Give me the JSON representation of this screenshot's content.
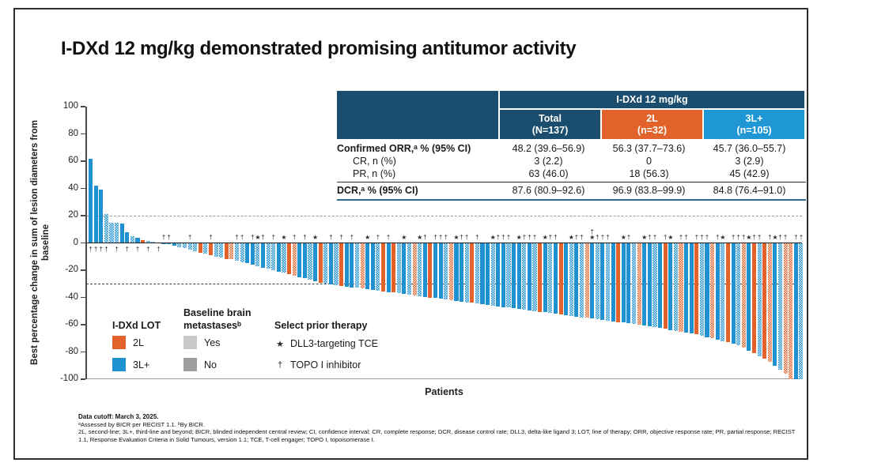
{
  "slide": {
    "title": "I-DXd 12 mg/kg demonstrated promising antitumor activity"
  },
  "table": {
    "group_header": "I-DXd 12 mg/kg",
    "columns": [
      {
        "label": "Total",
        "sub": "(N=137)"
      },
      {
        "label": "2L",
        "sub": "(n=32)"
      },
      {
        "label": "3L+",
        "sub": "(n=105)"
      }
    ],
    "rows": [
      {
        "label": "Confirmed ORR,ᵃ % (95% CI)",
        "values": [
          "48.2 (39.6–56.9)",
          "56.3 (37.7–73.6)",
          "45.7 (36.0–55.7)"
        ]
      },
      {
        "label": "CR, n (%)",
        "values": [
          "3 (2.2)",
          "0",
          "3 (2.9)"
        ]
      },
      {
        "label": "PR, n (%)",
        "values": [
          "63 (46.0)",
          "18 (56.3)",
          "45 (42.9)"
        ]
      },
      {
        "label": "DCR,ᵃ % (95% CI)",
        "values": [
          "87.6 (80.9–92.6)",
          "96.9 (83.8–99.9)",
          "84.8 (76.4–91.0)"
        ]
      }
    ]
  },
  "legend": {
    "lot_title": "I-DXd LOT",
    "lot_items": [
      {
        "label": "2L"
      },
      {
        "label": "3L+"
      }
    ],
    "mets_title": "Baseline brain metastasesᵇ",
    "mets_items": [
      {
        "label": "Yes"
      },
      {
        "label": "No"
      }
    ],
    "therapy_title": "Select prior therapy",
    "therapy_items": [
      {
        "symbol": "★",
        "label": "DLL3-targeting TCE"
      },
      {
        "symbol": "†",
        "label": "TOPO I inhibitor"
      }
    ]
  },
  "footnotes": {
    "line1": "Data cutoff: March 3, 2025.",
    "line2": "ᵃAssessed by BICR per RECIST 1.1. ᵇBy BICR.",
    "line3": "2L, second-line; 3L+, third-line and beyond; BICR, blinded independent central review; CI, confidence interval; CR, complete response; DCR, disease control rate; DLL3, delta-like ligand 3; LOT, line of therapy; ORR, objective response rate; PR, partial response; RECIST 1.1, Response Evaluation Criteria in Solid Tumours, version 1.1; TCE, T-cell engager; TOPO I, topoisomerase I."
  },
  "colors": {
    "lot_2l": "#e2622b",
    "lot_3l": "#1f90d0",
    "table_navy": "#1b4e6e",
    "table_blue": "#1f97d4",
    "mets_no_gray": "#9e9e9e"
  },
  "chart_data": {
    "type": "bar",
    "subtype": "waterfall",
    "n_patients": 137,
    "xlabel": "Patients",
    "ylabel": "Best percentage change in sum of lesion diameters from baseline",
    "ylim": [
      -100,
      100
    ],
    "yticks": [
      100,
      80,
      60,
      40,
      20,
      0,
      -20,
      -40,
      -60,
      -80,
      -100
    ],
    "ytick_labels": [
      "100",
      "80",
      "60",
      "40",
      "20",
      "0",
      "-20",
      "-40",
      "-60",
      "-80",
      "-100"
    ],
    "reference_lines": [
      20,
      -30
    ],
    "grid": false,
    "legend_position": "inside-lower-left",
    "bars_schema": [
      "value_pct",
      "lot",
      "brain_mets",
      "symbols"
    ],
    "bars": [
      [
        62,
        "3L",
        0,
        "†"
      ],
      [
        42,
        "3L",
        0,
        "†"
      ],
      [
        39,
        "3L",
        0,
        "†"
      ],
      [
        21,
        "3L",
        1,
        "†"
      ],
      [
        15,
        "3L",
        1,
        ""
      ],
      [
        15,
        "3L",
        1,
        "†"
      ],
      [
        14,
        "3L",
        0,
        ""
      ],
      [
        8,
        "3L",
        0,
        "†"
      ],
      [
        5,
        "3L",
        1,
        ""
      ],
      [
        4,
        "3L",
        0,
        "†"
      ],
      [
        2,
        "2L",
        0,
        ""
      ],
      [
        1.5,
        "3L",
        1,
        "†"
      ],
      [
        1,
        "3L",
        1,
        ""
      ],
      [
        0.5,
        "3L",
        1,
        "†"
      ],
      [
        -0.5,
        "3L",
        0,
        "†"
      ],
      [
        -1,
        "3L",
        0,
        "†"
      ],
      [
        -2,
        "3L",
        0,
        ""
      ],
      [
        -3,
        "3L",
        1,
        ""
      ],
      [
        -4,
        "3L",
        1,
        ""
      ],
      [
        -5,
        "3L",
        1,
        "†"
      ],
      [
        -6,
        "3L",
        1,
        ""
      ],
      [
        -7,
        "2L",
        0,
        ""
      ],
      [
        -8,
        "3L",
        1,
        ""
      ],
      [
        -9,
        "2L",
        0,
        "†"
      ],
      [
        -10,
        "3L",
        1,
        ""
      ],
      [
        -11,
        "3L",
        1,
        ""
      ],
      [
        -12,
        "2L",
        0,
        ""
      ],
      [
        -12,
        "2L",
        1,
        ""
      ],
      [
        -13,
        "3L",
        1,
        "†"
      ],
      [
        -14,
        "3L",
        1,
        "†"
      ],
      [
        -15,
        "3L",
        0,
        ""
      ],
      [
        -16,
        "3L",
        0,
        "†"
      ],
      [
        -17,
        "3L",
        1,
        "★"
      ],
      [
        -18,
        "3L",
        0,
        "†"
      ],
      [
        -19,
        "3L",
        1,
        ""
      ],
      [
        -20,
        "3L",
        1,
        "†"
      ],
      [
        -21,
        "3L",
        0,
        ""
      ],
      [
        -22,
        "3L",
        1,
        "★"
      ],
      [
        -23,
        "2L",
        0,
        ""
      ],
      [
        -24,
        "2L",
        1,
        "†"
      ],
      [
        -25,
        "3L",
        0,
        ""
      ],
      [
        -26,
        "3L",
        0,
        "†"
      ],
      [
        -27,
        "3L",
        1,
        ""
      ],
      [
        -28,
        "3L",
        0,
        "★"
      ],
      [
        -29,
        "2L",
        0,
        ""
      ],
      [
        -30,
        "3L",
        1,
        ""
      ],
      [
        -30.5,
        "3L",
        0,
        "†"
      ],
      [
        -31,
        "3L",
        1,
        ""
      ],
      [
        -31.5,
        "2L",
        0,
        "†"
      ],
      [
        -32,
        "3L",
        0,
        ""
      ],
      [
        -32.5,
        "3L",
        0,
        "†"
      ],
      [
        -33,
        "3L",
        1,
        ""
      ],
      [
        -33.5,
        "2L",
        1,
        ""
      ],
      [
        -34,
        "3L",
        0,
        "★"
      ],
      [
        -34.5,
        "3L",
        0,
        ""
      ],
      [
        -35,
        "3L",
        1,
        "†"
      ],
      [
        -35.5,
        "2L",
        0,
        ""
      ],
      [
        -36,
        "3L",
        0,
        "†"
      ],
      [
        -36.5,
        "2L",
        0,
        ""
      ],
      [
        -37,
        "3L",
        1,
        ""
      ],
      [
        -37.5,
        "3L",
        0,
        "★"
      ],
      [
        -38,
        "3L",
        1,
        ""
      ],
      [
        -38.5,
        "2L",
        1,
        ""
      ],
      [
        -39,
        "3L",
        1,
        "★"
      ],
      [
        -39.5,
        "3L",
        0,
        "†"
      ],
      [
        -40,
        "2L",
        0,
        ""
      ],
      [
        -40.5,
        "3L",
        0,
        "†"
      ],
      [
        -41,
        "3L",
        0,
        "†"
      ],
      [
        -41.5,
        "3L",
        1,
        "†"
      ],
      [
        -42,
        "2L",
        1,
        ""
      ],
      [
        -42.5,
        "3L",
        0,
        "★"
      ],
      [
        -43,
        "3L",
        0,
        "†"
      ],
      [
        -43.5,
        "3L",
        1,
        "†"
      ],
      [
        -44,
        "2L",
        0,
        ""
      ],
      [
        -44.5,
        "3L",
        1,
        "†"
      ],
      [
        -45,
        "3L",
        0,
        ""
      ],
      [
        -45.5,
        "3L",
        0,
        ""
      ],
      [
        -46,
        "3L",
        1,
        "★"
      ],
      [
        -46.5,
        "3L",
        0,
        "†"
      ],
      [
        -47,
        "3L",
        0,
        "†"
      ],
      [
        -47.5,
        "3L",
        1,
        "†"
      ],
      [
        -48,
        "3L",
        0,
        ""
      ],
      [
        -48.5,
        "3L",
        0,
        "★"
      ],
      [
        -49,
        "3L",
        1,
        "†"
      ],
      [
        -49.5,
        "3L",
        0,
        "†"
      ],
      [
        -50,
        "3L",
        1,
        "†"
      ],
      [
        -50.5,
        "2L",
        0,
        ""
      ],
      [
        -51,
        "3L",
        0,
        "★"
      ],
      [
        -51.5,
        "3L",
        1,
        "†"
      ],
      [
        -52,
        "3L",
        0,
        "†"
      ],
      [
        -52.5,
        "2L",
        0,
        ""
      ],
      [
        -53,
        "3L",
        0,
        ""
      ],
      [
        -53.5,
        "3L",
        1,
        "★"
      ],
      [
        -54,
        "3L",
        0,
        "†"
      ],
      [
        -54.5,
        "3L",
        1,
        "†"
      ],
      [
        -55,
        "2L",
        1,
        ""
      ],
      [
        -55.5,
        "3L",
        0,
        "†★"
      ],
      [
        -56,
        "3L",
        1,
        "†"
      ],
      [
        -56.5,
        "3L",
        0,
        "†"
      ],
      [
        -57,
        "3L",
        1,
        "†"
      ],
      [
        -57.5,
        "3L",
        0,
        ""
      ],
      [
        -58,
        "2L",
        0,
        ""
      ],
      [
        -58.5,
        "3L",
        0,
        "★"
      ],
      [
        -59,
        "3L",
        0,
        "†"
      ],
      [
        -59.5,
        "3L",
        1,
        ""
      ],
      [
        -60,
        "2L",
        1,
        ""
      ],
      [
        -60.5,
        "3L",
        0,
        "★"
      ],
      [
        -61,
        "3L",
        0,
        "†"
      ],
      [
        -62,
        "3L",
        1,
        "†"
      ],
      [
        -62.5,
        "3L",
        0,
        ""
      ],
      [
        -63,
        "2L",
        0,
        "†"
      ],
      [
        -64,
        "3L",
        0,
        "★"
      ],
      [
        -64.5,
        "3L",
        1,
        ""
      ],
      [
        -65,
        "2L",
        1,
        "†"
      ],
      [
        -66,
        "3L",
        0,
        "†"
      ],
      [
        -66.5,
        "3L",
        0,
        ""
      ],
      [
        -67,
        "2L",
        0,
        "†"
      ],
      [
        -68,
        "3L",
        1,
        "†"
      ],
      [
        -69,
        "3L",
        0,
        "†"
      ],
      [
        -70,
        "2L",
        1,
        ""
      ],
      [
        -71,
        "3L",
        0,
        "†"
      ],
      [
        -72,
        "3L",
        1,
        "★"
      ],
      [
        -73,
        "2L",
        0,
        ""
      ],
      [
        -74,
        "3L",
        0,
        "†"
      ],
      [
        -75,
        "3L",
        1,
        "†"
      ],
      [
        -77,
        "2L",
        1,
        "†"
      ],
      [
        -79,
        "3L",
        0,
        "★"
      ],
      [
        -81,
        "2L",
        0,
        "†"
      ],
      [
        -83,
        "3L",
        1,
        "†"
      ],
      [
        -85,
        "2L",
        0,
        ""
      ],
      [
        -87,
        "2L",
        1,
        "†"
      ],
      [
        -90,
        "3L",
        0,
        "★"
      ],
      [
        -93,
        "3L",
        1,
        "†"
      ],
      [
        -96,
        "2L",
        1,
        "†"
      ],
      [
        -100,
        "2L",
        1,
        ""
      ],
      [
        -100,
        "3L",
        0,
        "†"
      ],
      [
        -100,
        "3L",
        1,
        "†"
      ]
    ]
  }
}
